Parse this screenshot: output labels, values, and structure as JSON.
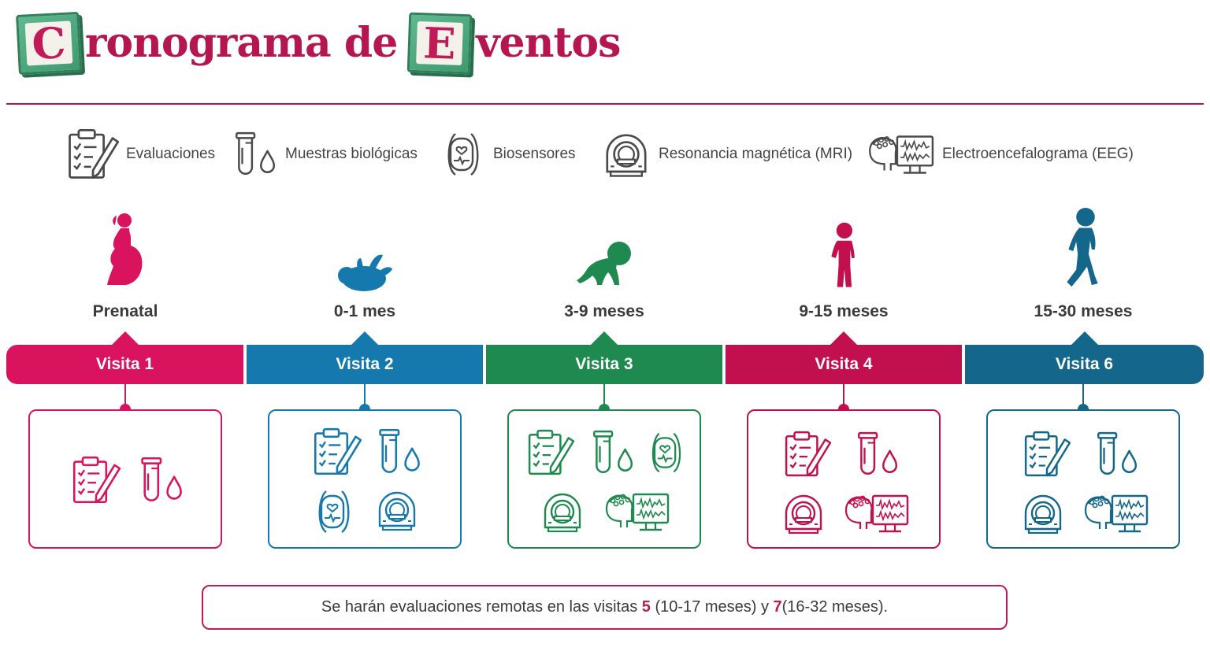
{
  "title": {
    "initial1": "C",
    "rest1": "ronograma de",
    "initial2": "E",
    "rest2": "ventos"
  },
  "legend": [
    {
      "icon": "clipboard-icon",
      "label": "Evaluaciones"
    },
    {
      "icon": "test-tube-drop-icon",
      "label": "Muestras biológicas"
    },
    {
      "icon": "wristband-sensor-icon",
      "label": "Biosensores"
    },
    {
      "icon": "mri-scanner-icon",
      "label": "Resonancia magnética (MRI)"
    },
    {
      "icon": "eeg-monitor-icon",
      "label": "Electroencefalograma (EEG)"
    }
  ],
  "colors": {
    "magenta": "#d9135d",
    "blue": "#1679ae",
    "green": "#1f8a4f",
    "crimson": "#c2104f",
    "teal": "#14678a",
    "icon_gray": "#4a4a4a"
  },
  "stages": [
    {
      "age": "Prenatal",
      "visit": "Visita 1",
      "figure": "pregnant-woman-icon",
      "color": "#d9135d",
      "icons": [
        "clipboard-icon",
        "test-tube-drop-icon"
      ]
    },
    {
      "age": "0-1 mes",
      "visit": "Visita 2",
      "figure": "newborn-baby-icon",
      "color": "#1679ae",
      "icons": [
        "clipboard-icon",
        "test-tube-drop-icon",
        "wristband-sensor-icon",
        "mri-scanner-icon"
      ]
    },
    {
      "age": "3-9 meses",
      "visit": "Visita 3",
      "figure": "crawling-baby-icon",
      "color": "#1f8a4f",
      "icons": [
        "clipboard-icon",
        "test-tube-drop-icon",
        "wristband-sensor-icon",
        "mri-scanner-icon",
        "eeg-monitor-icon"
      ]
    },
    {
      "age": "9-15 meses",
      "visit": "Visita 4",
      "figure": "standing-toddler-icon",
      "color": "#c2104f",
      "icons": [
        "clipboard-icon",
        "test-tube-drop-icon",
        "mri-scanner-icon",
        "eeg-monitor-icon"
      ]
    },
    {
      "age": "15-30 meses",
      "visit": "Visita 6",
      "figure": "walking-child-icon",
      "color": "#14678a",
      "icons": [
        "clipboard-icon",
        "test-tube-drop-icon",
        "mri-scanner-icon",
        "eeg-monitor-icon"
      ]
    }
  ],
  "note": {
    "part1": "Se harán evaluaciones remotas en las visitas ",
    "visit_a": "5",
    "part2": " (10-17 meses) y ",
    "visit_b": "7",
    "part3": " (16-32 meses)."
  }
}
